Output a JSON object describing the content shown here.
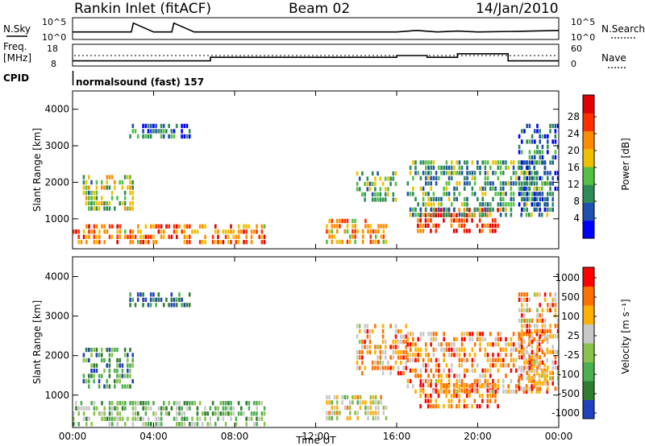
{
  "header": {
    "station": "Rankin Inlet (fitACF)",
    "beam": "Beam 02",
    "date": "14/Jan/2010"
  },
  "noise_panel": {
    "left_label": "N.Sky",
    "right_label": "N.Search",
    "left_ticks": [
      "10^5",
      "10^0"
    ],
    "right_ticks": [
      "10^5",
      "10^0"
    ]
  },
  "freq_panel": {
    "left_label_line1": "Freq.",
    "left_label_line2": "[MHz]",
    "left_ticks": [
      "18",
      "8"
    ],
    "right_ticks": [
      "60",
      "0"
    ],
    "right_label": "Nave"
  },
  "cpid": {
    "label": "CPID",
    "value": "normalsound (fast) 157"
  },
  "chart_data": [
    {
      "type": "line",
      "title": "N.Sky / N.Search",
      "series": [
        {
          "name": "N.Sky",
          "x": [
            0,
            2,
            2.9,
            3,
            4,
            4.9,
            5,
            6,
            8,
            10,
            12,
            14,
            16,
            17,
            18,
            19,
            20,
            22,
            24
          ],
          "values": [
            2,
            2,
            2,
            5,
            2,
            2,
            5,
            2,
            2,
            2,
            2,
            2,
            2,
            2.5,
            2,
            2.3,
            2,
            2.2,
            2.5
          ]
        },
        {
          "name": "N.Search",
          "x": [
            0,
            24
          ],
          "values": [
            1,
            1
          ]
        }
      ]
    },
    {
      "type": "line",
      "title": "Freq. / Nave",
      "series": [
        {
          "name": "Freq. [MHz]",
          "x": [
            0,
            6.8,
            6.8,
            16,
            16,
            17.5,
            17.5,
            19,
            19,
            21.5,
            21.5,
            24
          ],
          "values": [
            10,
            10,
            12,
            12,
            13,
            13,
            12,
            12,
            14,
            14,
            10,
            10
          ]
        },
        {
          "name": "Nave",
          "x": [
            0,
            24
          ],
          "values": [
            25,
            25
          ]
        }
      ]
    },
    {
      "type": "heatmap",
      "quantity": "Power",
      "xlabel": "",
      "ylabel": "Slant Range [km]",
      "colorbar_label": "Power [dB]",
      "colorbar_ticks": [
        "28",
        "24",
        "20",
        "16",
        "12",
        "8",
        "4"
      ],
      "colorbar_values": [
        28,
        24,
        20,
        16,
        12,
        8,
        4
      ],
      "colors": [
        "#0000ff",
        "#2050b0",
        "#2e8b57",
        "#55c046",
        "#f0c000",
        "#ff8c00",
        "#ff3000",
        "#e00000"
      ],
      "xlim": [
        0,
        24
      ],
      "ylim": [
        180,
        4500
      ],
      "xticks": [
        "00:00",
        "04:00",
        "08:00",
        "12:00",
        "16:00",
        "20:00",
        "00:00"
      ],
      "yticks": [
        "1000",
        "2000",
        "3000",
        "4000"
      ],
      "regions": [
        {
          "t0": 0.0,
          "t1": 9.5,
          "r0": 300,
          "r1": 850,
          "level": 0.72
        },
        {
          "t0": 0.5,
          "t1": 3.0,
          "r0": 1200,
          "r1": 2200,
          "level": 0.45
        },
        {
          "t0": 2.8,
          "t1": 5.8,
          "r0": 3300,
          "r1": 3600,
          "level": 0.25
        },
        {
          "t0": 12.5,
          "t1": 15.5,
          "r0": 400,
          "r1": 1000,
          "level": 0.65
        },
        {
          "t0": 14.0,
          "t1": 16.0,
          "r0": 1500,
          "r1": 2300,
          "level": 0.4
        },
        {
          "t0": 17.0,
          "t1": 21.0,
          "r0": 700,
          "r1": 1300,
          "level": 0.85
        },
        {
          "t0": 16.5,
          "t1": 23.5,
          "r0": 1100,
          "r1": 2600,
          "level": 0.35
        },
        {
          "t0": 22.0,
          "t1": 24.0,
          "r0": 1200,
          "r1": 3600,
          "level": 0.2
        }
      ]
    },
    {
      "type": "heatmap",
      "quantity": "Velocity",
      "xlabel": "Time UT",
      "ylabel": "Slant Range [km]",
      "colorbar_label": "Velocity [m s⁻¹]",
      "colorbar_ticks": [
        "1000",
        "500",
        "100",
        "25",
        "-25",
        "-100",
        "-500",
        "-1000"
      ],
      "colorbar_values": [
        1000,
        500,
        100,
        25,
        -25,
        -100,
        -500,
        -1000
      ],
      "colors": [
        "#2040c0",
        "#2e7d32",
        "#4caf50",
        "#8bc34a",
        "#c8c8c8",
        "#ffb000",
        "#ff7000",
        "#ff0000"
      ],
      "xlim": [
        0,
        24
      ],
      "ylim": [
        180,
        4500
      ],
      "xticks": [
        "00:00",
        "04:00",
        "08:00",
        "12:00",
        "16:00",
        "20:00",
        "00:00"
      ],
      "yticks": [
        "1000",
        "2000",
        "3000",
        "4000"
      ],
      "regions": [
        {
          "t0": 0.0,
          "t1": 9.5,
          "r0": 300,
          "r1": 850,
          "level": 0.4
        },
        {
          "t0": 0.5,
          "t1": 3.0,
          "r0": 1200,
          "r1": 2200,
          "level": 0.25
        },
        {
          "t0": 2.8,
          "t1": 5.8,
          "r0": 3300,
          "r1": 3600,
          "level": 0.1
        },
        {
          "t0": 12.5,
          "t1": 15.5,
          "r0": 400,
          "r1": 1000,
          "level": 0.55
        },
        {
          "t0": 14.0,
          "t1": 16.5,
          "r0": 1500,
          "r1": 2800,
          "level": 0.72
        },
        {
          "t0": 17.0,
          "t1": 21.0,
          "r0": 700,
          "r1": 1300,
          "level": 0.85
        },
        {
          "t0": 16.5,
          "t1": 23.5,
          "r0": 1100,
          "r1": 2600,
          "level": 0.72
        },
        {
          "t0": 22.0,
          "t1": 24.0,
          "r0": 1200,
          "r1": 3600,
          "level": 0.7
        }
      ]
    }
  ]
}
